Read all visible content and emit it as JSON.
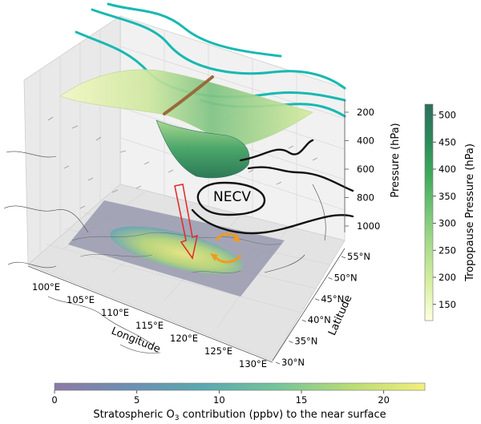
{
  "pressure_axis": {
    "label": "Pressure (hPa)",
    "ticks": [
      "200",
      "400",
      "600",
      "800",
      "1000"
    ]
  },
  "latitude_axis": {
    "label": "Latitude",
    "ticks": [
      "30°N",
      "35°N",
      "40°N",
      "45°N",
      "50°N",
      "55°N"
    ]
  },
  "longitude_axis": {
    "label": "Longitude",
    "ticks": [
      "100°E",
      "105°E",
      "110°E",
      "115°E",
      "120°E",
      "125°E",
      "130°E"
    ]
  },
  "tropopause_colorbar": {
    "label": "Tropopause Pressure (hPa)",
    "ticks": [
      "150",
      "200",
      "250",
      "300",
      "350",
      "400",
      "450",
      "500"
    ],
    "range": [
      120,
      520
    ],
    "colors": [
      "#ffffe0",
      "#d9f0a3",
      "#addd8e",
      "#78c679",
      "#41ab5d",
      "#2c8a5a",
      "#2f6f5f"
    ]
  },
  "o3_colorbar": {
    "label_prefix": "Stratospheric O",
    "label_sub": "3",
    "label_suffix": " contribution (ppbv) to the near surface",
    "ticks": [
      "0",
      "5",
      "10",
      "15",
      "20"
    ],
    "range": [
      0,
      22.5
    ],
    "colors": [
      "#8d7aa6",
      "#6d8fb2",
      "#5aa8b0",
      "#74c49a",
      "#b9dc74",
      "#f2ef7a"
    ]
  },
  "annotation": {
    "label": "NECV",
    "color": "#2c5fe0"
  },
  "colors": {
    "jet_streams": "#19b8b2",
    "trough_axis": "#9a6a3c",
    "geopotential_contours": "#111111",
    "transport_arrow": "#e03030",
    "circulation_arrows": "#f09a20"
  }
}
